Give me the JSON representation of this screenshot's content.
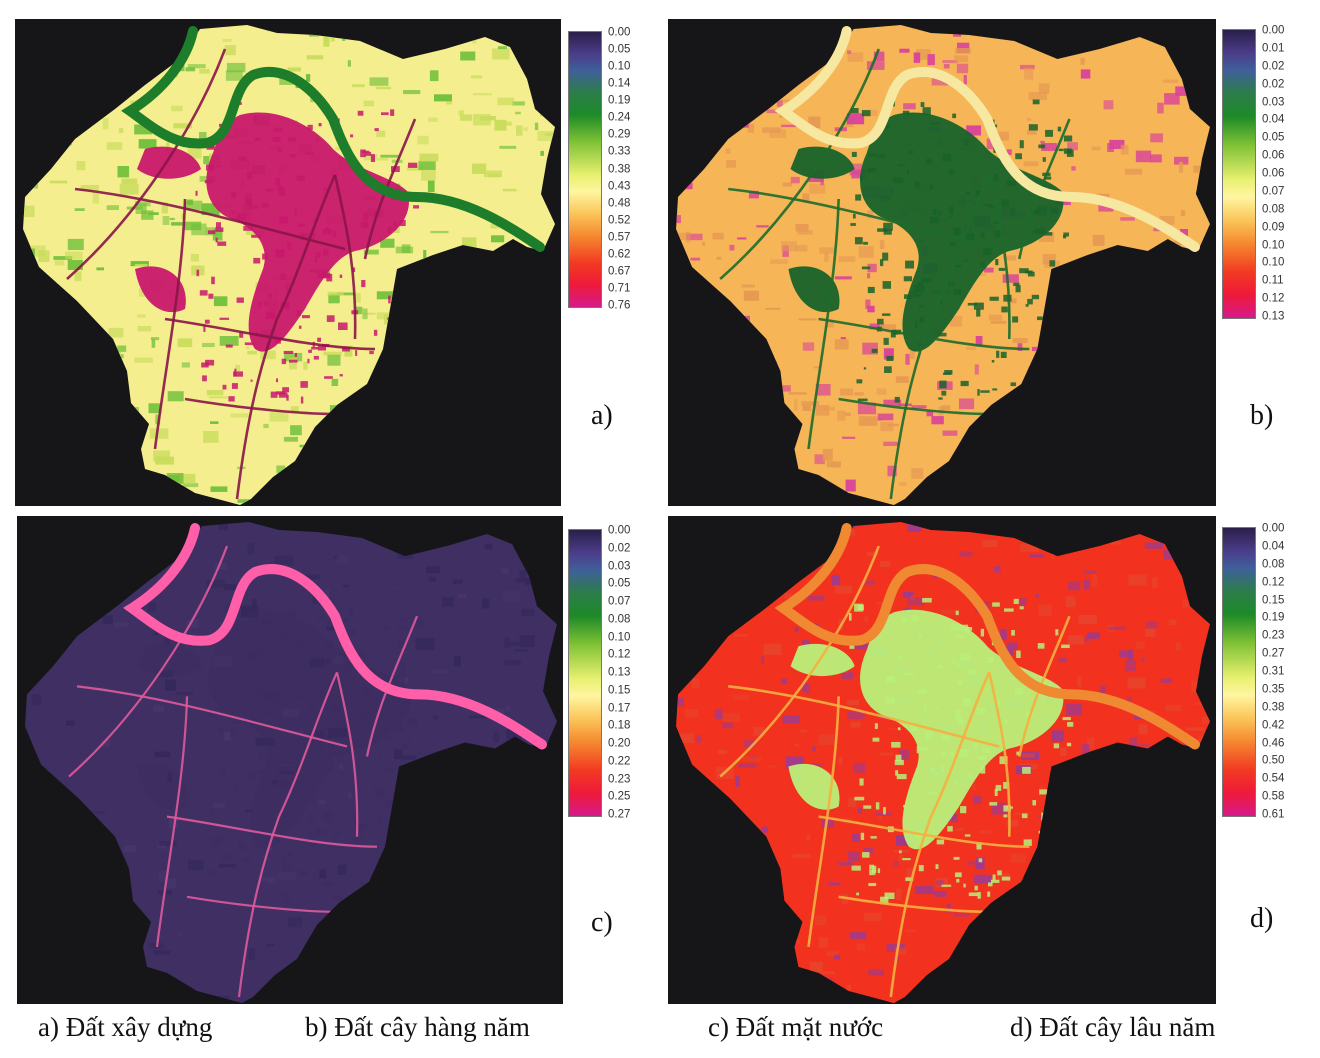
{
  "panels": [
    {
      "letter": "a)",
      "legend_ticks": [
        "0.00",
        "0.05",
        "0.10",
        "0.14",
        "0.19",
        "0.24",
        "0.29",
        "0.33",
        "0.38",
        "0.43",
        "0.48",
        "0.52",
        "0.57",
        "0.62",
        "0.67",
        "0.71",
        "0.76"
      ],
      "colors": {
        "background": "#f4ee8e",
        "patch_a": "#6fbf3a",
        "patch_b": "#c8dc5c",
        "urban": "#c8176c",
        "river": "#1e7d2a",
        "roads": "#8a1548"
      }
    },
    {
      "letter": "b)",
      "legend_ticks": [
        "0.00",
        "0.01",
        "0.02",
        "0.02",
        "0.03",
        "0.04",
        "0.05",
        "0.06",
        "0.06",
        "0.07",
        "0.08",
        "0.09",
        "0.10",
        "0.10",
        "0.11",
        "0.12",
        "0.13"
      ],
      "colors": {
        "background": "#f6b557",
        "patch_a": "#d9449a",
        "patch_b": "#e69a52",
        "urban": "#17632a",
        "river": "#f6e8a0",
        "roads": "#1e6b2c"
      }
    },
    {
      "letter": "c)",
      "legend_ticks": [
        "0.00",
        "0.02",
        "0.03",
        "0.05",
        "0.07",
        "0.08",
        "0.10",
        "0.12",
        "0.13",
        "0.15",
        "0.17",
        "0.18",
        "0.20",
        "0.22",
        "0.23",
        "0.25",
        "0.27"
      ],
      "colors": {
        "background": "#3f2f63",
        "patch_a": "#35285a",
        "patch_b": "#47356b",
        "urban": "#3a2c5f",
        "river": "#ff5fa8",
        "roads": "#e05a9c"
      }
    },
    {
      "letter": "d)",
      "legend_ticks": [
        "0.00",
        "0.04",
        "0.08",
        "0.12",
        "0.15",
        "0.19",
        "0.23",
        "0.27",
        "0.31",
        "0.35",
        "0.38",
        "0.42",
        "0.46",
        "0.50",
        "0.54",
        "0.58",
        "0.61"
      ],
      "colors": {
        "background": "#f2321e",
        "patch_a": "#a03a8c",
        "patch_b": "#e8432c",
        "urban": "#b9f07a",
        "river": "#f08a32",
        "roads": "#f5b040"
      }
    }
  ],
  "captions": [
    "a) Đất xây dựng",
    "b) Đất cây hàng năm",
    "c) Đất mặt nước",
    "d) Đất cây lâu năm"
  ]
}
